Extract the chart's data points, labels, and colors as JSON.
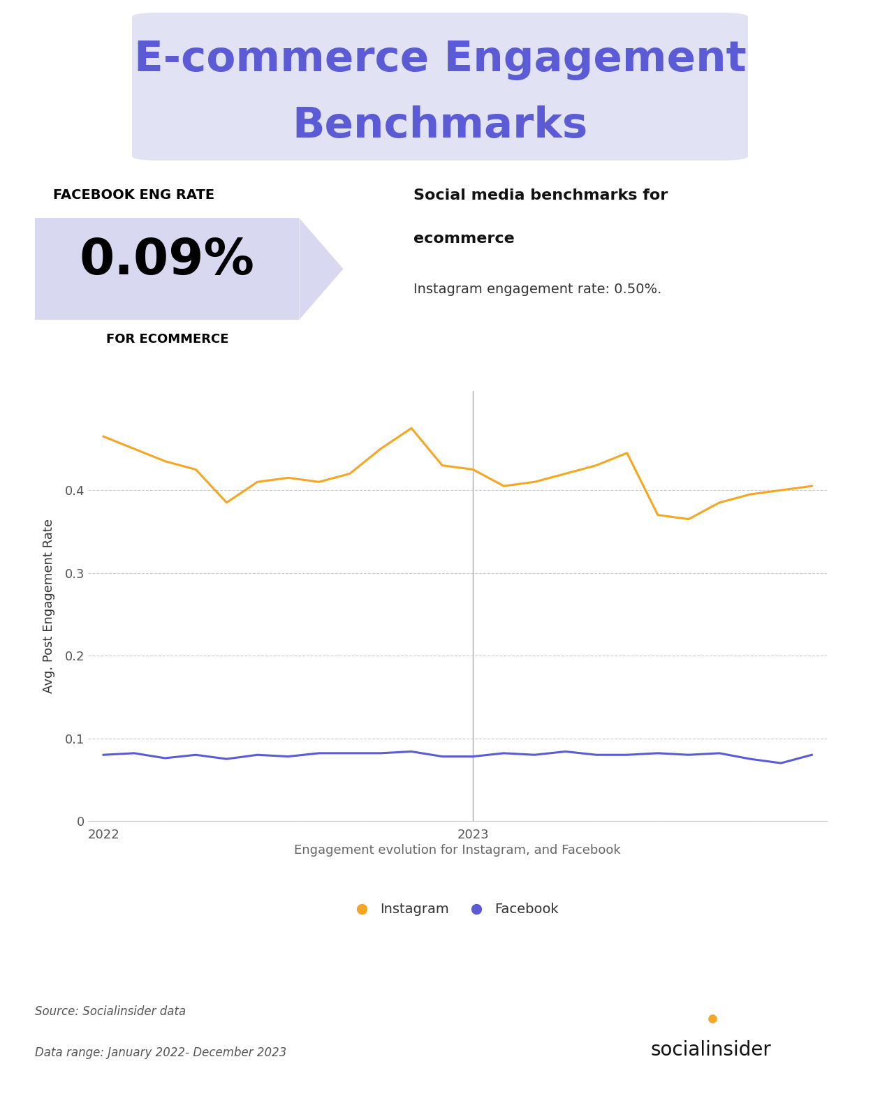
{
  "title_line1": "E-commerce Engagement",
  "title_line2": "Benchmarks",
  "title_color": "#5b5bd6",
  "title_bg_color": "#e2e2f5",
  "title_fontsize": 42,
  "fb_label": "FACEBOOK ENG RATE",
  "fb_value": "0.09%",
  "fb_sub": "FOR ECOMMERCE",
  "fb_bg_color": "#d8d8f0",
  "right_title1": "Social media benchmarks for",
  "right_title2": "ecommerce",
  "right_text": "Instagram engagement rate: 0.50%.",
  "xlabel_text": "Engagement evolution for Instagram, and Facebook",
  "ylabel_text": "Avg. Post Engagement Rate",
  "instagram_color": "#f5a623",
  "facebook_color": "#5b5bd6",
  "vline_color": "#aaaaaa",
  "instagram_data": [
    0.465,
    0.45,
    0.435,
    0.425,
    0.385,
    0.41,
    0.415,
    0.41,
    0.42,
    0.45,
    0.475,
    0.43,
    0.425,
    0.405,
    0.41,
    0.42,
    0.43,
    0.445,
    0.37,
    0.365,
    0.385,
    0.395,
    0.4,
    0.405
  ],
  "facebook_data": [
    0.08,
    0.082,
    0.076,
    0.08,
    0.075,
    0.08,
    0.078,
    0.082,
    0.082,
    0.082,
    0.084,
    0.078,
    0.078,
    0.082,
    0.08,
    0.084,
    0.08,
    0.08,
    0.082,
    0.08,
    0.082,
    0.075,
    0.07,
    0.08
  ],
  "x_ticks": [
    0,
    12
  ],
  "x_tick_labels": [
    "2022",
    "2023"
  ],
  "ylim": [
    0,
    0.52
  ],
  "yticks": [
    0,
    0.1,
    0.2,
    0.3,
    0.4
  ],
  "bg_color": "#ffffff",
  "grid_color": "#cccccc"
}
